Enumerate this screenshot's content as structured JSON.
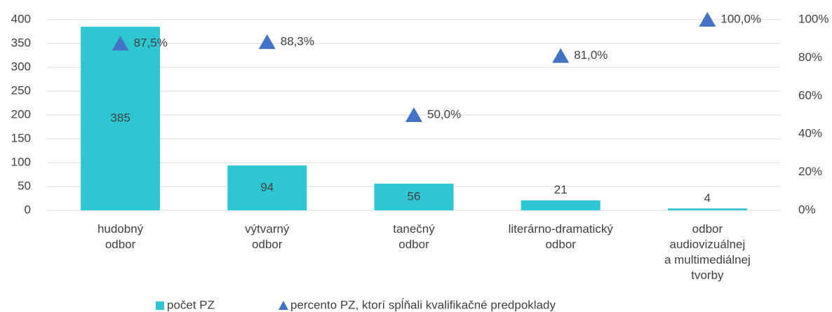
{
  "chart_data": {
    "type": "bar",
    "categories": [
      "hudobný\nodbor",
      "výtvarný\nodbor",
      "tanečný\nodbor",
      "literárno-dramatický\nodbor",
      "odbor\naudiovizuálnej\na multimediálnej\ntvorby"
    ],
    "series": [
      {
        "name": "počet PZ",
        "type": "bar",
        "color": "#2ec7d1",
        "values": [
          385,
          94,
          56,
          21,
          4
        ]
      },
      {
        "name": "percento PZ, ktorí spĺňali kvalifikačné predpoklady",
        "type": "scatter",
        "axis": "y2",
        "color": "#4472c4",
        "values": [
          87.5,
          88.3,
          50.0,
          81.0,
          100.0
        ],
        "value_labels": [
          "87,5%",
          "88,3%",
          "50,0%",
          "81,0%",
          "100,0%"
        ]
      }
    ],
    "ylim": [
      0,
      400
    ],
    "yticks": [
      0,
      50,
      100,
      150,
      200,
      250,
      300,
      350,
      400
    ],
    "y2lim": [
      0,
      100
    ],
    "y2ticks": [
      {
        "value": 0,
        "label": "0%"
      },
      {
        "value": 20,
        "label": "20%"
      },
      {
        "value": 40,
        "label": "40%"
      },
      {
        "value": 60,
        "label": "60%"
      },
      {
        "value": 80,
        "label": "80%"
      },
      {
        "value": 100,
        "label": "100%"
      }
    ],
    "grid": true,
    "legend": "bottom"
  }
}
